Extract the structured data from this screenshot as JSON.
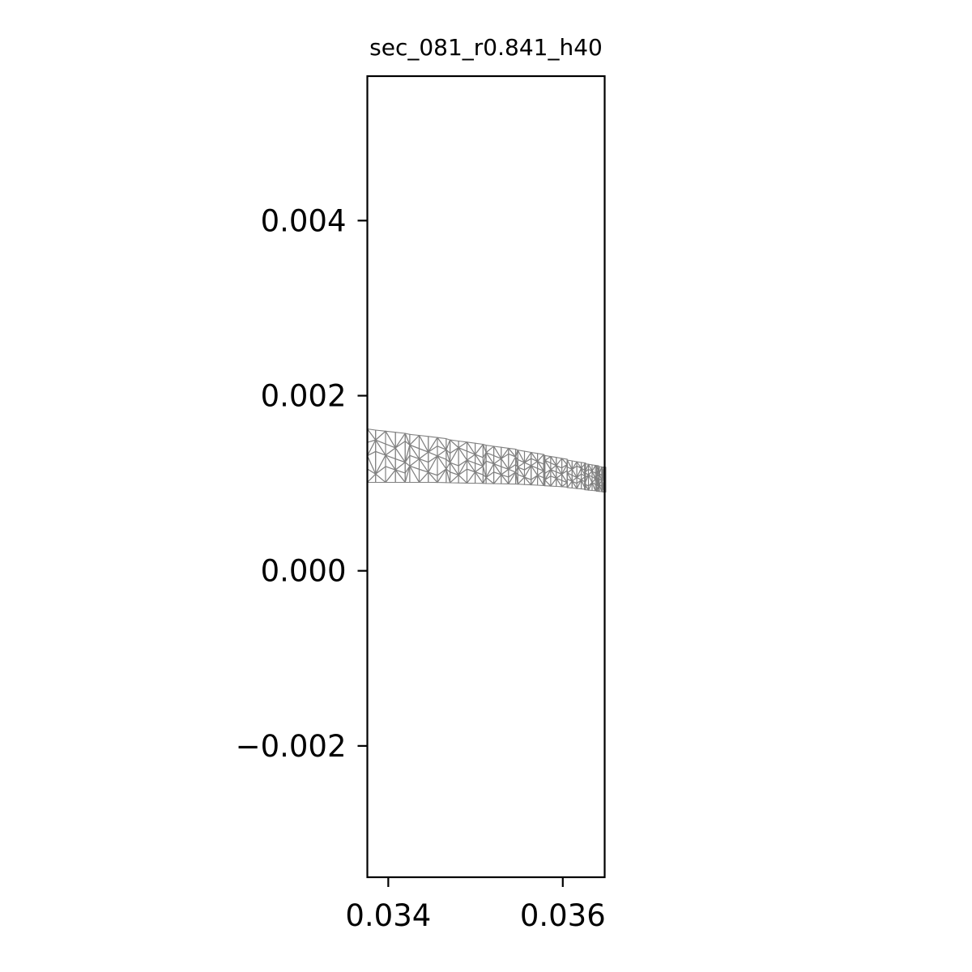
{
  "chart_data": {
    "type": "mesh",
    "title": "sec_081_r0.841_h40",
    "xlabel": "",
    "ylabel": "",
    "xlim": [
      0.03376,
      0.03648
    ],
    "ylim": [
      -0.0035,
      0.00565
    ],
    "x_ticks": [
      {
        "value": 0.034,
        "label": "0.034"
      },
      {
        "value": 0.036,
        "label": "0.036"
      }
    ],
    "y_ticks": [
      {
        "value": 0.004,
        "label": "0.004"
      },
      {
        "value": 0.002,
        "label": "0.002"
      },
      {
        "value": 0.0,
        "label": "0.000"
      },
      {
        "value": -0.002,
        "label": "−0.002"
      }
    ],
    "grid": false,
    "mesh": {
      "color": "#808080",
      "top_edge": [
        [
          0.03376,
          0.00162
        ],
        [
          0.0345,
          0.00153
        ],
        [
          0.0355,
          0.00138
        ],
        [
          0.036,
          0.00128
        ],
        [
          0.03648,
          0.00118
        ]
      ],
      "bottom_edge": [
        [
          0.03376,
          0.00101
        ],
        [
          0.0345,
          0.00101
        ],
        [
          0.0355,
          0.00099
        ],
        [
          0.036,
          0.00096
        ],
        [
          0.03648,
          0.0009
        ]
      ]
    }
  }
}
